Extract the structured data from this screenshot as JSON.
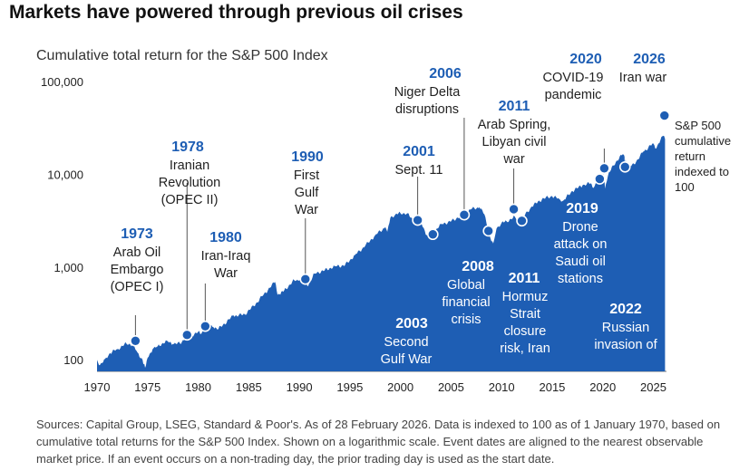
{
  "title": "Markets have powered through previous oil crises",
  "chart_data": {
    "type": "area",
    "subtitle": "Cumulative total return for the S&P 500 Index",
    "y_scale": "log",
    "ylim": [
      75,
      100000
    ],
    "xlim": [
      1970,
      2026.3
    ],
    "y_ticks": [
      {
        "value": 100,
        "label": "100"
      },
      {
        "value": 1000,
        "label": "1,000"
      },
      {
        "value": 10000,
        "label": "10,000"
      },
      {
        "value": 100000,
        "label": "100,000"
      }
    ],
    "x_ticks": [
      "1970",
      "1975",
      "1980",
      "1985",
      "1990",
      "1995",
      "2000",
      "2005",
      "2010",
      "2015",
      "2020",
      "2025"
    ],
    "color": "#1e5eb4",
    "series": [
      {
        "x": [
          1970.0,
          1970.3,
          1970.5,
          1970.8,
          1971.3,
          1972.0,
          1972.9,
          1973.5,
          1974.0,
          1974.5,
          1974.75,
          1975.0,
          1975.5,
          1976.0,
          1976.9,
          1977.5,
          1978.2,
          1978.7,
          1979.0,
          1980.0,
          1980.2,
          1980.9,
          1981.5,
          1982.0,
          1982.6,
          1983.5,
          1984.0,
          1984.6,
          1985.5,
          1986.5,
          1987.6,
          1987.85,
          1988.5,
          1989.5,
          1990.0,
          1990.6,
          1990.8,
          1991.5,
          1992.5,
          1993.5,
          1994.5,
          1995.5,
          1996.5,
          1997.5,
          1998.5,
          1998.7,
          1999.0,
          1999.5,
          2000.0,
          2000.7,
          2001.0,
          2001.7,
          2002.0,
          2002.6,
          2002.8,
          2003.2,
          2004.0,
          2005.0,
          2006.0,
          2007.0,
          2007.8,
          2008.3,
          2008.8,
          2009.17,
          2009.5,
          2010.0,
          2010.5,
          2011.3,
          2011.7,
          2012.0,
          2013.0,
          2014.0,
          2015.0,
          2015.7,
          2016.1,
          2017.0,
          2018.0,
          2018.8,
          2018.99,
          2019.5,
          2020.0,
          2020.15,
          2020.22,
          2020.5,
          2021.0,
          2021.99,
          2022.5,
          2022.8,
          2023.5,
          2024.0,
          2025.0,
          2025.3,
          2025.5,
          2026.0,
          2026.16
        ],
        "values": [
          100,
          88,
          92,
          102,
          118,
          130,
          150,
          145,
          120,
          100,
          82,
          105,
          130,
          140,
          160,
          148,
          150,
          170,
          175,
          200,
          190,
          235,
          225,
          215,
          245,
          300,
          300,
          310,
          380,
          510,
          690,
          500,
          560,
          720,
          720,
          760,
          620,
          850,
          920,
          1020,
          1040,
          1350,
          1680,
          2200,
          2700,
          2400,
          3400,
          3700,
          3800,
          3800,
          3400,
          2800,
          3100,
          2200,
          2150,
          2300,
          2900,
          3100,
          3600,
          4200,
          4400,
          3700,
          2200,
          1800,
          2600,
          3000,
          3100,
          3500,
          3000,
          3300,
          4500,
          5400,
          5800,
          5400,
          5200,
          6600,
          7600,
          8000,
          7200,
          8400,
          9800,
          9300,
          7000,
          9500,
          12500,
          16500,
          13000,
          12200,
          14500,
          17500,
          21500,
          19000,
          21500,
          26000,
          24000
        ]
      }
    ],
    "end_annotation": "S&P 500 cumulative return indexed to 100",
    "events": [
      {
        "year": "1973",
        "text": "Arab Oil Embargo (OPEC I)",
        "x": 1973.8,
        "value": 160
      },
      {
        "year": "1978",
        "text": "Iranian Revolution (OPEC II)",
        "x": 1978.9,
        "value": 185
      },
      {
        "year": "1980",
        "text": "Iran-Iraq War",
        "x": 1980.7,
        "value": 230
      },
      {
        "year": "1990",
        "text": "First Gulf War",
        "x": 1990.6,
        "value": 740
      },
      {
        "year": "2001",
        "text": "Sept. 11",
        "x": 2001.7,
        "value": 3200
      },
      {
        "year": "2003",
        "text": "Second Gulf War",
        "x": 2003.2,
        "value": 2250
      },
      {
        "year": "2006",
        "text": "Niger Delta disruptions",
        "x": 2006.3,
        "value": 3650
      },
      {
        "year": "2008",
        "text": "Global financial crisis",
        "x": 2008.7,
        "value": 2450
      },
      {
        "year": "2011",
        "text": "Arab Spring, Libyan civil war",
        "x": 2011.2,
        "value": 4200
      },
      {
        "year": "2011",
        "text": "Hormuz Strait closure risk, Iran sanctions",
        "x": 2012.0,
        "value": 3150
      },
      {
        "year": "2019",
        "text": "Drone attack on Saudi oil stations",
        "x": 2019.7,
        "value": 8900
      },
      {
        "year": "2020",
        "text": "COVID-19 pandemic",
        "x": 2020.15,
        "value": 11600
      },
      {
        "year": "2022",
        "text": "Russian invasion of Ukraine",
        "x": 2022.2,
        "value": 12000
      },
      {
        "year": "2026",
        "text": "Iran war",
        "x": 2026.1,
        "value": 43000
      }
    ]
  },
  "source_text": "Sources: Capital Group, LSEG, Standard & Poor's. As of 28 February 2026. Data is indexed to 100 as of 1 January 1970, based on cumulative total returns for the S&P 500 Index. Shown on a logarithmic scale. Event dates are aligned to the nearest observable market price. If an event occurs on a non-trading day, the prior trading day is used as the start date."
}
